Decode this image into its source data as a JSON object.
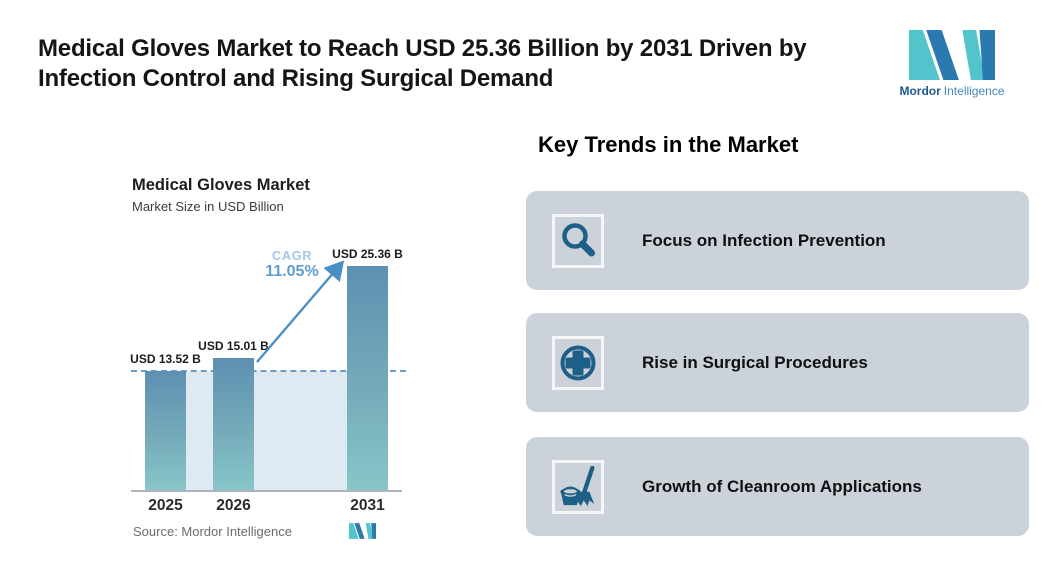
{
  "page": {
    "title_line1": "Medical Gloves Market to Reach USD 25.36 Billion by 2031 Driven by",
    "title_line2": "Infection Control and Rising Surgical Demand"
  },
  "brand": {
    "name_bold": "Mordor",
    "name_light": "Intelligence"
  },
  "chart_data": {
    "type": "bar",
    "title": "Medical Gloves Market",
    "subtitle": "Market Size in USD Billion",
    "categories": [
      "2025",
      "2026",
      "2031"
    ],
    "values": [
      13.52,
      15.01,
      25.36
    ],
    "value_labels": [
      "USD 13.52 B",
      "USD 15.01 B",
      "USD 25.36 B"
    ],
    "unit": "USD Billion",
    "ylim": [
      0,
      25.36
    ],
    "cagr_label": "CAGR",
    "cagr_value": "11.05%",
    "baseline_reference": 13.52,
    "legend": "none",
    "grid": "off",
    "source": "Source: Mordor Intelligence"
  },
  "trends": {
    "heading": "Key Trends in the Market",
    "cards": [
      {
        "icon": "magnifier-icon",
        "label": "Focus on Infection Prevention"
      },
      {
        "icon": "medical-cross-icon",
        "label": "Rise in Surgical Procedures"
      },
      {
        "icon": "broom-bucket-icon",
        "label": "Growth of Cleanroom Applications"
      }
    ]
  },
  "colors": {
    "bar_top": "#5e90b2",
    "bar_bottom": "#87c6ca",
    "plot_fill": "#dfe9f2",
    "dashed_line": "#6f9cc4",
    "arrow": "#4a8fc3",
    "cagr_light": "#a9c8e4",
    "cagr_strong": "#5f9cd2",
    "card_background": "#ccd2da",
    "trend_icon": "#1d5f86",
    "logo_teal": "#53c4cc",
    "logo_blue": "#2a7ab0"
  }
}
